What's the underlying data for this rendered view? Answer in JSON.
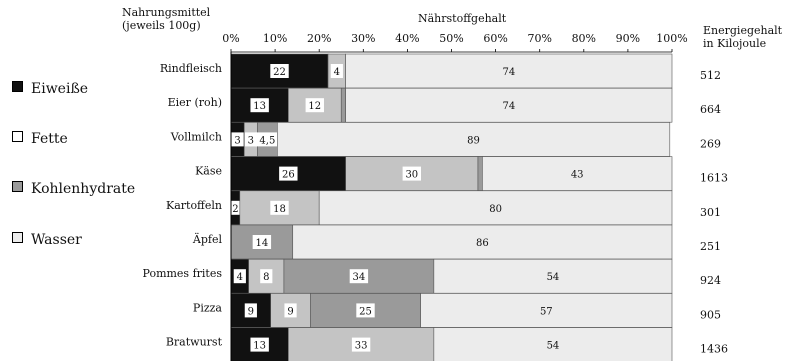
{
  "header": {
    "category_title_line1": "Nahrungsmittel",
    "category_title_line2": "(jeweils 100g)",
    "axis_title": "Nährstoffgehalt",
    "energy_title_line1": "Energiegehalt",
    "energy_title_line2": "in Kilojoule"
  },
  "legend": [
    {
      "label": "Eiweiße",
      "color": "#111111"
    },
    {
      "label": "Fette",
      "color": "#c4c4c4"
    },
    {
      "label": "Kohlenhydrate",
      "color": "#9a9a9a"
    },
    {
      "label": "Wasser",
      "color": "#ececec"
    }
  ],
  "chart_data": {
    "type": "bar",
    "orientation": "horizontal",
    "stacked": true,
    "x_ticks": [
      "0%",
      "10%",
      "20%",
      "30%",
      "40%",
      "50%",
      "60%",
      "70%",
      "80%",
      "90%",
      "100%"
    ],
    "xlim": [
      0,
      100
    ],
    "categories": [
      "Rindfleisch",
      "Eier (roh)",
      "Vollmilch",
      "Käse",
      "Kartoffeln",
      "Äpfel",
      "Pommes frites",
      "Pizza",
      "Bratwurst"
    ],
    "series": [
      {
        "name": "Eiweiße",
        "color": "#111111",
        "values": [
          22,
          13,
          3,
          26,
          2,
          0,
          4,
          9,
          13
        ],
        "labels": [
          "22",
          "13",
          "3",
          "26",
          "2",
          "",
          "4",
          "9",
          "13"
        ]
      },
      {
        "name": "Fette",
        "color": "#c4c4c4",
        "values": [
          4,
          12,
          3,
          30,
          18,
          0,
          8,
          9,
          33
        ],
        "labels": [
          "4",
          "12",
          "3",
          "30",
          "18",
          "",
          "8",
          "9",
          "33"
        ]
      },
      {
        "name": "Kohlenhydrate",
        "color": "#9a9a9a",
        "values": [
          0,
          1,
          4.5,
          1,
          0,
          14,
          34,
          25,
          0
        ],
        "labels": [
          "",
          "1",
          "4,5",
          "1",
          "",
          "14",
          "34",
          "25",
          ""
        ]
      },
      {
        "name": "Wasser",
        "color": "#ececec",
        "values": [
          74,
          74,
          89,
          43,
          80,
          86,
          54,
          57,
          54
        ],
        "labels": [
          "74",
          "74",
          "89",
          "43",
          "80",
          "86",
          "54",
          "57",
          "54"
        ]
      }
    ],
    "energy_kj": [
      "512",
      "664",
      "269",
      "1613",
      "301",
      "251",
      "924",
      "905",
      "1436"
    ]
  }
}
